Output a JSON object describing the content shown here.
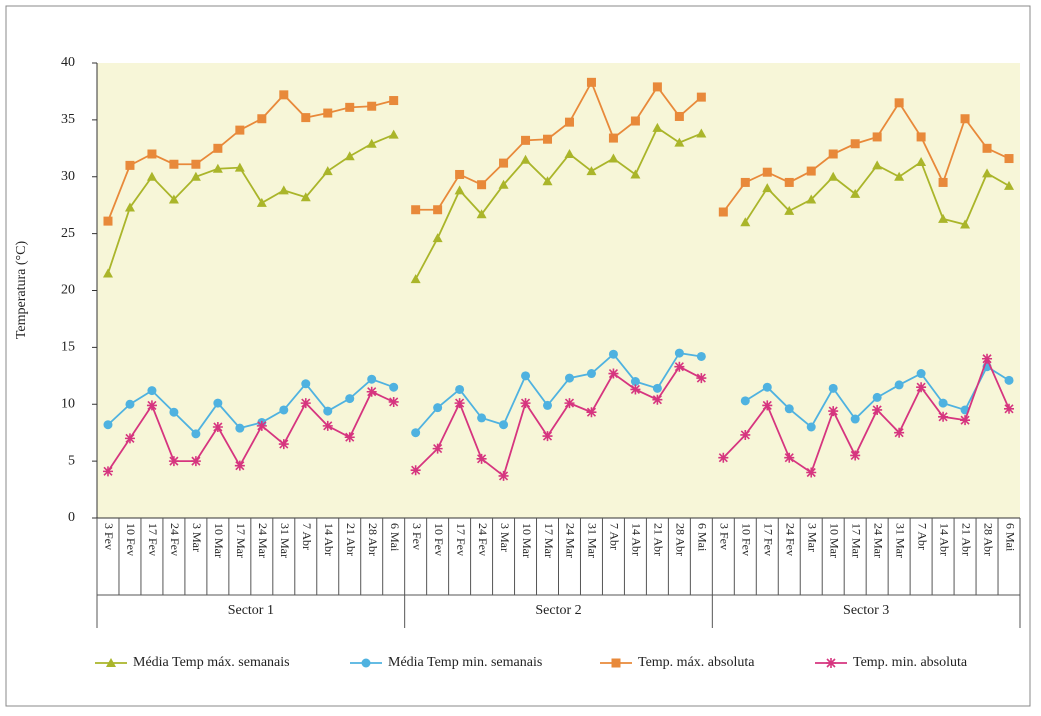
{
  "chart_data": {
    "type": "line",
    "y_label": "Temperatura (°C)",
    "ylim": [
      0,
      40
    ],
    "yticks": [
      0,
      5,
      10,
      15,
      20,
      25,
      30,
      35,
      40
    ],
    "plot_background": "#f7f6d8",
    "legend": "bottom",
    "groups": [
      {
        "label": "Sector 1",
        "categories": [
          "3 Fev",
          "10 Fev",
          "17 Fev",
          "24 Fev",
          "3 Mar",
          "10 Mar",
          "17 Mar",
          "24 Mar",
          "31 Mar",
          "7 Abr",
          "14 Abr",
          "21 Abr",
          "28 Abr",
          "6 Mai"
        ]
      },
      {
        "label": "Sector 2",
        "categories": [
          "3 Fev",
          "10 Fev",
          "17 Fev",
          "24 Fev",
          "3 Mar",
          "10 Mar",
          "17 Mar",
          "24 Mar",
          "31 Mar",
          "7 Abr",
          "14 Abr",
          "21 Abr",
          "28 Abr",
          "6 Mai"
        ]
      },
      {
        "label": "Sector 3",
        "categories": [
          "3 Fev",
          "10 Fev",
          "17 Fev",
          "24 Fev",
          "3 Mar",
          "10 Mar",
          "17 Mar",
          "24 Mar",
          "31 Mar",
          "7 Abr",
          "14 Abr",
          "21 Abr",
          "28 Abr",
          "6 Mai"
        ]
      }
    ],
    "series": [
      {
        "name": "Média Temp máx. semanais",
        "color": "#aab52a",
        "marker": "triangle",
        "values": [
          [
            21.5,
            27.3,
            30,
            28,
            30,
            30.7,
            30.8,
            27.7,
            28.8,
            28.2,
            30.5,
            31.8,
            32.9,
            33.7
          ],
          [
            21,
            24.6,
            28.8,
            26.7,
            29.3,
            31.5,
            29.6,
            32,
            30.5,
            31.6,
            30.2,
            34.3,
            33,
            33.8
          ],
          [
            null,
            26,
            29,
            27,
            28,
            30,
            28.5,
            31,
            30,
            31.3,
            26.3,
            25.8,
            30.3,
            29.2
          ]
        ]
      },
      {
        "name": "Média Temp min. semanais",
        "color": "#4fb2e0",
        "marker": "circle",
        "values": [
          [
            8.2,
            10,
            11.2,
            9.3,
            7.4,
            10.1,
            7.9,
            8.4,
            9.5,
            11.8,
            9.4,
            10.5,
            12.2,
            11.5
          ],
          [
            7.5,
            9.7,
            11.3,
            8.8,
            8.2,
            12.5,
            9.9,
            12.3,
            12.7,
            14.4,
            12,
            11.4,
            14.5,
            14.2
          ],
          [
            null,
            10.3,
            11.5,
            9.6,
            8,
            11.4,
            8.7,
            10.6,
            11.7,
            12.7,
            10.1,
            9.5,
            13.3,
            12.1
          ]
        ]
      },
      {
        "name": "Temp. máx. absoluta",
        "color": "#e8893a",
        "marker": "square",
        "values": [
          [
            26.1,
            31,
            32,
            31.1,
            31.1,
            32.5,
            34.1,
            35.1,
            37.2,
            35.2,
            35.6,
            36.1,
            36.2,
            36.7
          ],
          [
            27.1,
            27.1,
            30.2,
            29.3,
            31.2,
            33.2,
            33.3,
            34.8,
            38.3,
            33.4,
            34.9,
            37.9,
            35.3,
            37
          ],
          [
            26.9,
            29.5,
            30.4,
            29.5,
            30.5,
            32,
            32.9,
            33.5,
            36.5,
            33.5,
            29.5,
            35.1,
            32.5,
            31.6
          ]
        ]
      },
      {
        "name": "Temp. min. absoluta",
        "color": "#d6357f",
        "marker": "star",
        "values": [
          [
            4.1,
            7,
            9.9,
            5,
            5,
            8,
            4.6,
            8.1,
            6.5,
            10.1,
            8.1,
            7.1,
            11.1,
            10.2
          ],
          [
            4.2,
            6.1,
            10.1,
            5.2,
            3.7,
            10.1,
            7.2,
            10.1,
            9.3,
            12.7,
            11.3,
            10.4,
            13.3,
            12.3
          ],
          [
            5.3,
            7.3,
            9.9,
            5.3,
            4,
            9.4,
            5.5,
            9.5,
            7.5,
            11.5,
            8.9,
            8.6,
            14,
            9.6
          ]
        ]
      }
    ]
  }
}
